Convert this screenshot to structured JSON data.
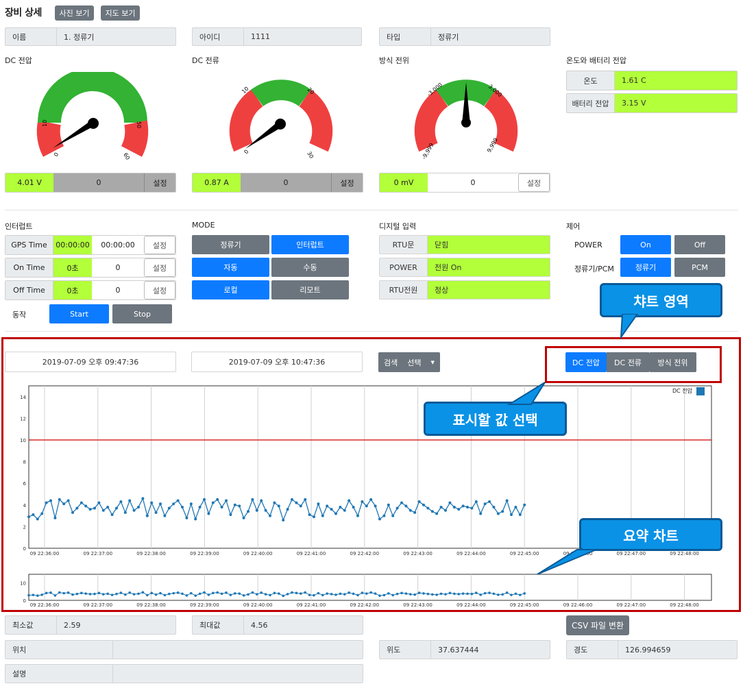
{
  "header": {
    "title": "장비 상세",
    "photo_btn": "사진 보기",
    "map_btn": "지도 보기"
  },
  "info": {
    "name_k": "이름",
    "name_v": "1. 정류기",
    "id_k": "아이디",
    "id_v": "1111",
    "type_k": "타입",
    "type_v": "정류기"
  },
  "gauges": {
    "dc_voltage": {
      "title": "DC 전압",
      "value": "4.01 V",
      "setpoint": "0",
      "set_btn": "설정",
      "ticks": [
        "0",
        "10",
        "50",
        "60"
      ],
      "level": 0.07
    },
    "dc_current": {
      "title": "DC 전류",
      "value": "0.87 A",
      "setpoint": "0",
      "set_btn": "설정",
      "ticks": [
        "0",
        "10",
        "20",
        "30"
      ],
      "level": 0.03
    },
    "potential": {
      "title": "방식 전위",
      "value": "0 mV",
      "setpoint": "0",
      "set_btn": "설정",
      "ticks": [
        "-9,999",
        "-3,000",
        "3,000",
        "9,999"
      ],
      "level": 0.5
    }
  },
  "temp_battery": {
    "title": "온도와 배터리 전압",
    "temp_k": "온도",
    "temp_v": "1.61 C",
    "batt_k": "배터리 전압",
    "batt_v": "3.15 V"
  },
  "interrupt": {
    "title": "인터럽트",
    "gps_k": "GPS Time",
    "gps_v": "00:00:00",
    "gps_in": "00:00:00",
    "on_k": "On Time",
    "on_v": "0초",
    "on_in": "0",
    "off_k": "Off Time",
    "off_v": "0초",
    "off_in": "0",
    "set_btn": "설정",
    "action_k": "동작",
    "start": "Start",
    "stop": "Stop"
  },
  "mode": {
    "title": "MODE",
    "b1": "정류기",
    "b2": "인터럽트",
    "b3": "자동",
    "b4": "수동",
    "b5": "로컬",
    "b6": "리모트"
  },
  "digital": {
    "title": "디지털 입력",
    "r1k": "RTU문",
    "r1v": "닫힘",
    "r2k": "POWER",
    "r2v": "전원 On",
    "r3k": "RTU전원",
    "r3v": "정상"
  },
  "control": {
    "title": "제어",
    "power_k": "POWER",
    "on": "On",
    "off": "Off",
    "rect_k": "정류기/PCM",
    "rect": "정류기",
    "pcm": "PCM"
  },
  "chart_panel": {
    "date_from": "2019-07-09 오후 09:47:36",
    "date_to": "2019-07-09 오후 10:47:36",
    "search": "검색",
    "select": "선택",
    "tab1": "DC 전압",
    "tab2": "DC 전류",
    "tab3": "방식 전위",
    "callout_area": "챠트 영역",
    "callout_select": "표시할 값 선택",
    "callout_summary": "요약 차트"
  },
  "chart_data": [
    {
      "type": "line",
      "legend": "DC 전압",
      "ylim": [
        0,
        15
      ],
      "yticks": [
        "0",
        "2",
        "4",
        "6",
        "8",
        "10",
        "12",
        "14"
      ],
      "xticks": [
        "09 22:36:00",
        "09 22:37:00",
        "09 22:38:00",
        "09 22:39:00",
        "09 22:40:00",
        "09 22:41:00",
        "09 22:42:00",
        "09 22:43:00",
        "09 22:44:00",
        "09 22:45:00",
        "09 22:46:00",
        "09 22:47:00",
        "09 22:48:00"
      ],
      "threshold": 10,
      "values": [
        2.9,
        3.1,
        2.7,
        3.2,
        4.2,
        4.4,
        2.8,
        4.5,
        4.1,
        4.4,
        3.3,
        3.7,
        4.2,
        3.9,
        3.6,
        3.7,
        4.2,
        3.5,
        3.8,
        3.1,
        3.7,
        4.3,
        3.3,
        4.4,
        3.5,
        3.8,
        4.6,
        3.0,
        4.2,
        3.3,
        4.1,
        3.0,
        3.7,
        4.1,
        4.4,
        3.8,
        2.8,
        4.1,
        2.7,
        3.8,
        4.5,
        3.2,
        4.2,
        4.5,
        3.8,
        4.4,
        3.1,
        4.0,
        3.9,
        2.8,
        3.4,
        4.5,
        3.5,
        4.4,
        3.5,
        3.0,
        4.2,
        3.9,
        2.6,
        3.6,
        4.5,
        4.2,
        3.9,
        4.5,
        3.1,
        2.9,
        4.1,
        3.0,
        3.9,
        3.6,
        3.2,
        3.8,
        3.5,
        4.4,
        3.8,
        3.0,
        4.3,
        3.9,
        4.5,
        3.9,
        2.7,
        3.0,
        4.0,
        3.0,
        3.7,
        4.2,
        3.9,
        3.5,
        3.3,
        4.3,
        4.0,
        3.7,
        3.4,
        3.2,
        3.8,
        3.5,
        4.2,
        3.8,
        3.6,
        3.9,
        3.8,
        3.7,
        4.3,
        3.2,
        4.1,
        4.3,
        3.8,
        3.2,
        3.4,
        4.4,
        3.1,
        3.8,
        3.1,
        4.0
      ]
    },
    {
      "type": "line",
      "role": "summary",
      "yticks": [
        "0",
        "10"
      ]
    }
  ],
  "summary": {
    "min_k": "최소값",
    "min_v": "2.59",
    "max_k": "최대값",
    "max_v": "4.56",
    "csv": "CSV 파일 변환",
    "loc_k": "위치",
    "loc_v": "",
    "lat_k": "위도",
    "lat_v": "37.637444",
    "lng_k": "경도",
    "lng_v": "126.994659",
    "desc_k": "설명",
    "desc_v": ""
  }
}
